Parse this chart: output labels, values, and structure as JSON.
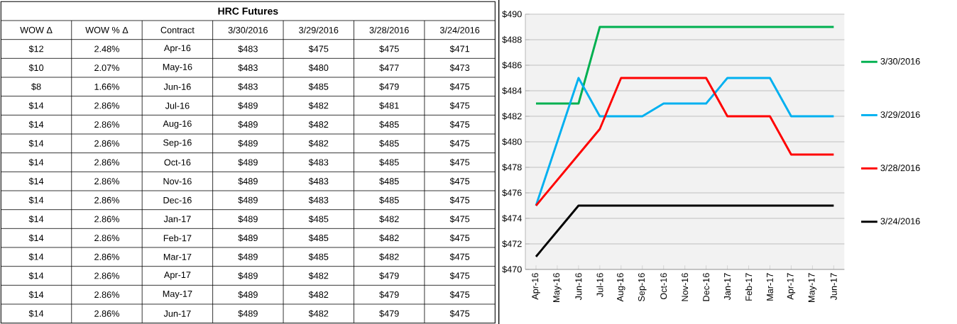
{
  "chart_data": [
    {
      "type": "other",
      "title": "HRC Futures",
      "xlabel": "Contract",
      "categories": [
        "Apr-16",
        "May-16",
        "Jun-16",
        "Jul-16",
        "Aug-16",
        "Sep-16",
        "Oct-16",
        "Nov-16",
        "Dec-16",
        "Jan-17",
        "Feb-17",
        "Mar-17",
        "Apr-17",
        "May-17",
        "Jun-17"
      ],
      "series": [
        {
          "name": "WOW Δ",
          "values": [
            12,
            10,
            8,
            14,
            14,
            14,
            14,
            14,
            14,
            14,
            14,
            14,
            14,
            14,
            14
          ],
          "value_labels": [
            "$12",
            "$10",
            "$8",
            "$14",
            "$14",
            "$14",
            "$14",
            "$14",
            "$14",
            "$14",
            "$14",
            "$14",
            "$14",
            "$14",
            "$14"
          ]
        },
        {
          "name": "WOW % Δ",
          "values": [
            2.48,
            2.07,
            1.66,
            2.86,
            2.86,
            2.86,
            2.86,
            2.86,
            2.86,
            2.86,
            2.86,
            2.86,
            2.86,
            2.86,
            2.86
          ],
          "value_labels": [
            "2.48%",
            "2.07%",
            "1.66%",
            "2.86%",
            "2.86%",
            "2.86%",
            "2.86%",
            "2.86%",
            "2.86%",
            "2.86%",
            "2.86%",
            "2.86%",
            "2.86%",
            "2.86%",
            "2.86%"
          ]
        },
        {
          "name": "3/30/2016",
          "values": [
            483,
            483,
            483,
            489,
            489,
            489,
            489,
            489,
            489,
            489,
            489,
            489,
            489,
            489,
            489
          ],
          "value_labels": [
            "$483",
            "$483",
            "$483",
            "$489",
            "$489",
            "$489",
            "$489",
            "$489",
            "$489",
            "$489",
            "$489",
            "$489",
            "$489",
            "$489",
            "$489"
          ]
        },
        {
          "name": "3/29/2016",
          "values": [
            475,
            480,
            485,
            482,
            482,
            482,
            483,
            483,
            483,
            485,
            485,
            485,
            482,
            482,
            482
          ],
          "value_labels": [
            "$475",
            "$480",
            "$485",
            "$482",
            "$482",
            "$482",
            "$483",
            "$483",
            "$483",
            "$485",
            "$485",
            "$485",
            "$482",
            "$482",
            "$482"
          ]
        },
        {
          "name": "3/28/2016",
          "values": [
            475,
            477,
            479,
            481,
            485,
            485,
            485,
            485,
            485,
            482,
            482,
            482,
            479,
            479,
            479
          ],
          "value_labels": [
            "$475",
            "$477",
            "$479",
            "$481",
            "$485",
            "$485",
            "$485",
            "$485",
            "$485",
            "$482",
            "$482",
            "$482",
            "$479",
            "$479",
            "$479"
          ]
        },
        {
          "name": "3/24/2016",
          "values": [
            471,
            473,
            475,
            475,
            475,
            475,
            475,
            475,
            475,
            475,
            475,
            475,
            475,
            475,
            475
          ],
          "value_labels": [
            "$471",
            "$473",
            "$475",
            "$475",
            "$475",
            "$475",
            "$475",
            "$475",
            "$475",
            "$475",
            "$475",
            "$475",
            "$475",
            "$475",
            "$475"
          ]
        }
      ]
    },
    {
      "type": "line",
      "categories": [
        "Apr-16",
        "May-16",
        "Jun-16",
        "Jul-16",
        "Aug-16",
        "Sep-16",
        "Oct-16",
        "Nov-16",
        "Dec-16",
        "Jan-17",
        "Feb-17",
        "Mar-17",
        "Apr-17",
        "May-17",
        "Jun-17"
      ],
      "series": [
        {
          "name": "3/30/2016",
          "color": "#00b050",
          "values": [
            483,
            483,
            483,
            489,
            489,
            489,
            489,
            489,
            489,
            489,
            489,
            489,
            489,
            489,
            489
          ]
        },
        {
          "name": "3/29/2016",
          "color": "#00b0f0",
          "values": [
            475,
            480,
            485,
            482,
            482,
            482,
            483,
            483,
            483,
            485,
            485,
            485,
            482,
            482,
            482
          ]
        },
        {
          "name": "3/28/2016",
          "color": "#ff0000",
          "values": [
            475,
            477,
            479,
            481,
            485,
            485,
            485,
            485,
            485,
            482,
            482,
            482,
            479,
            479,
            479
          ]
        },
        {
          "name": "3/24/2016",
          "color": "#000000",
          "values": [
            471,
            473,
            475,
            475,
            475,
            475,
            475,
            475,
            475,
            475,
            475,
            475,
            475,
            475,
            475
          ]
        }
      ],
      "ylim": [
        470,
        490
      ],
      "yticks": [
        {
          "value": 470,
          "label": "$470"
        },
        {
          "value": 472,
          "label": "$472"
        },
        {
          "value": 474,
          "label": "$474"
        },
        {
          "value": 476,
          "label": "$476"
        },
        {
          "value": 478,
          "label": "$478"
        },
        {
          "value": 480,
          "label": "$480"
        },
        {
          "value": 482,
          "label": "$482"
        },
        {
          "value": 484,
          "label": "$484"
        },
        {
          "value": 486,
          "label": "$486"
        },
        {
          "value": 488,
          "label": "$488"
        },
        {
          "value": 490,
          "label": "$490"
        }
      ],
      "grid": "y",
      "legend": "right",
      "marker": "none",
      "line_style": "solid"
    }
  ]
}
